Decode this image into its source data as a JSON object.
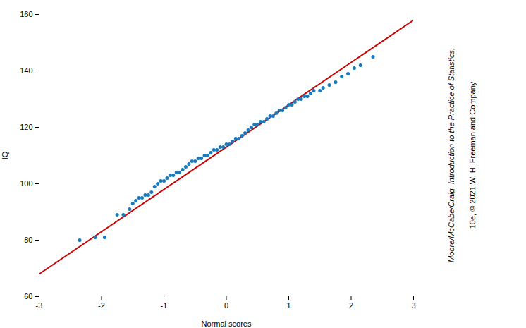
{
  "chart_data": {
    "type": "scatter",
    "xlabel": "Normal scores",
    "ylabel": "IQ",
    "xlim": [
      -3,
      3
    ],
    "ylim": [
      60,
      160
    ],
    "xticks": [
      -3,
      -2,
      -1,
      0,
      1,
      2,
      3
    ],
    "yticks": [
      60,
      80,
      100,
      120,
      140,
      160
    ],
    "grid": false,
    "series": [
      {
        "type": "line",
        "color": "#cc0000",
        "x": [
          -3,
          3
        ],
        "values": [
          68,
          158
        ]
      },
      {
        "type": "scatter",
        "color": "#1a7abf",
        "x": [
          -2.35,
          -2.1,
          -1.95,
          -1.75,
          -1.65,
          -1.55,
          -1.5,
          -1.45,
          -1.4,
          -1.35,
          -1.3,
          -1.25,
          -1.2,
          -1.15,
          -1.1,
          -1.05,
          -1.0,
          -0.95,
          -0.9,
          -0.85,
          -0.8,
          -0.75,
          -0.7,
          -0.65,
          -0.6,
          -0.55,
          -0.5,
          -0.45,
          -0.4,
          -0.35,
          -0.3,
          -0.25,
          -0.2,
          -0.15,
          -0.1,
          -0.05,
          0.0,
          0.05,
          0.1,
          0.15,
          0.2,
          0.25,
          0.3,
          0.35,
          0.4,
          0.45,
          0.5,
          0.55,
          0.6,
          0.65,
          0.7,
          0.75,
          0.8,
          0.85,
          0.9,
          0.95,
          1.0,
          1.05,
          1.1,
          1.15,
          1.2,
          1.25,
          1.3,
          1.35,
          1.4,
          1.5,
          1.55,
          1.65,
          1.75,
          1.85,
          1.95,
          2.05,
          2.15,
          2.35
        ],
        "values": [
          80,
          81,
          81,
          89,
          89,
          91,
          93,
          94,
          95,
          95,
          96,
          96,
          97,
          99,
          100,
          101,
          101,
          102,
          103,
          103,
          104,
          104,
          105,
          106,
          107,
          108,
          108,
          109,
          109,
          110,
          110,
          111,
          112,
          112,
          113,
          113,
          114,
          114,
          115,
          116,
          116,
          117,
          118,
          119,
          120,
          121,
          121,
          122,
          122,
          123,
          124,
          124,
          125,
          126,
          126,
          127,
          128,
          128,
          129,
          130,
          130,
          131,
          131,
          132,
          133,
          133,
          134,
          135,
          136,
          138,
          139,
          141,
          142,
          145
        ]
      }
    ],
    "annotations": [
      "Moore/McCabe/Craig, Introduction to the Practice of Statistics,",
      "10e, © 2021 W. H. Freeman and Company"
    ]
  }
}
